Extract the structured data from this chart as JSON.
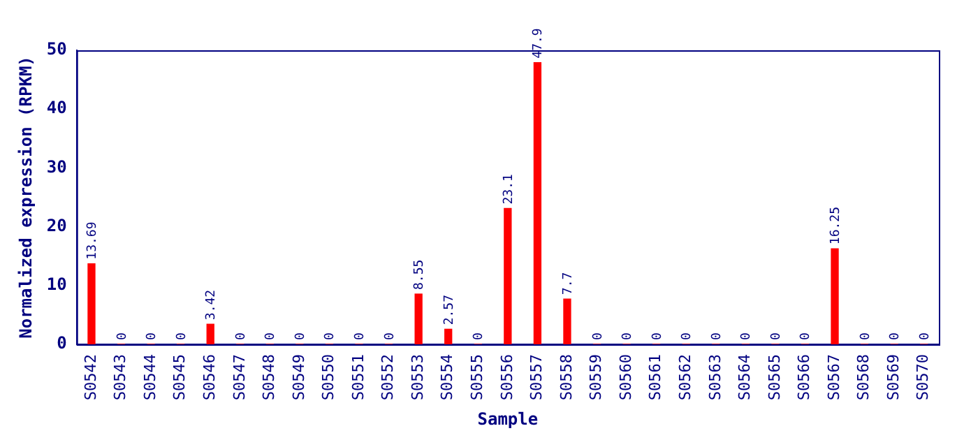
{
  "chart_data": {
    "type": "bar",
    "xlabel": "Sample",
    "ylabel": "Normalized expression (RPKM)",
    "categories": [
      "S0542",
      "S0543",
      "S0544",
      "S0545",
      "S0546",
      "S0547",
      "S0548",
      "S0549",
      "S0550",
      "S0551",
      "S0552",
      "S0553",
      "S0554",
      "S0555",
      "S0556",
      "S0557",
      "S0558",
      "S0559",
      "S0560",
      "S0561",
      "S0562",
      "S0563",
      "S0564",
      "S0565",
      "S0566",
      "S0567",
      "S0568",
      "S0569",
      "S0570"
    ],
    "values": [
      13.69,
      0,
      0,
      0,
      3.42,
      0,
      0,
      0,
      0,
      0,
      0,
      8.55,
      2.57,
      0,
      23.1,
      47.9,
      7.7,
      0,
      0,
      0,
      0,
      0,
      0,
      0,
      0,
      16.25,
      0,
      0,
      0
    ],
    "color": "#ff0000",
    "ylim": [
      0,
      50
    ],
    "yticks": [
      0,
      10,
      20,
      30,
      40,
      50
    ],
    "grid": false,
    "legend": false,
    "data_labels": true
  }
}
